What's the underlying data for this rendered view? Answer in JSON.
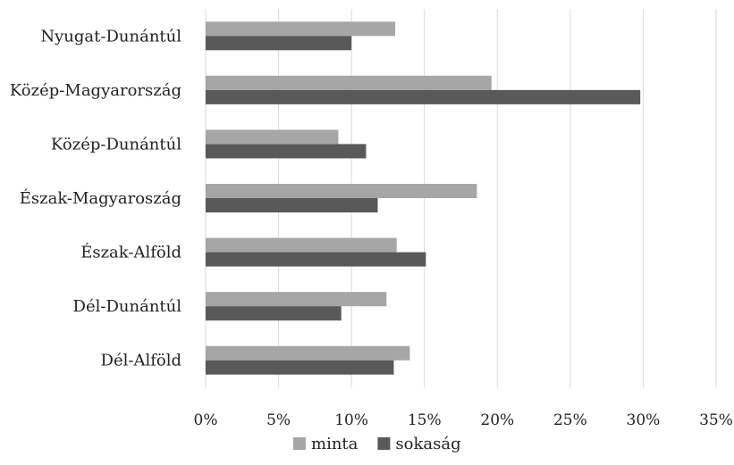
{
  "chart_data": {
    "type": "bar",
    "orientation": "horizontal",
    "categories": [
      "Nyugat-Dunántúl",
      "Közép-Magyarország",
      "Közép-Dunántúl",
      "Észak-Magyaroszág",
      "Észak-Alföld",
      "Dél-Dunántúl",
      "Dél-Alföld"
    ],
    "series": [
      {
        "name": "minta",
        "color": "#a6a6a6",
        "values": [
          13.0,
          19.6,
          9.1,
          18.6,
          13.1,
          12.4,
          14.0
        ]
      },
      {
        "name": "sokaság",
        "color": "#595959",
        "values": [
          10.0,
          29.8,
          11.0,
          11.8,
          15.1,
          9.3,
          12.9
        ]
      }
    ],
    "xlim": [
      0,
      35
    ],
    "x_ticks": [
      0,
      5,
      10,
      15,
      20,
      25,
      30,
      35
    ],
    "x_tick_labels": [
      "0%",
      "5%",
      "10%",
      "15%",
      "20%",
      "25%",
      "30%",
      "35%"
    ],
    "title": "",
    "xlabel": "",
    "ylabel": "",
    "grid": "vertical",
    "legend": "bottom"
  }
}
